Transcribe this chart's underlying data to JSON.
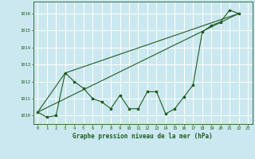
{
  "title": "Graphe pression niveau de la mer (hPa)",
  "background_color": "#cbe8f0",
  "grid_color": "#ffffff",
  "line_color": "#1e5c1e",
  "xlim": [
    -0.5,
    23.5
  ],
  "ylim": [
    1009.5,
    1016.7
  ],
  "yticks": [
    1010,
    1011,
    1012,
    1013,
    1014,
    1015,
    1016
  ],
  "xticks": [
    0,
    1,
    2,
    3,
    4,
    5,
    6,
    7,
    8,
    9,
    10,
    11,
    12,
    13,
    14,
    15,
    16,
    17,
    18,
    19,
    20,
    21,
    22,
    23
  ],
  "series1": {
    "x": [
      0,
      1,
      2,
      3,
      4,
      5,
      6,
      7,
      8,
      9,
      10,
      11,
      12,
      13,
      14,
      15,
      16,
      17,
      18,
      19,
      20,
      21,
      22
    ],
    "y": [
      1010.2,
      1009.9,
      1010.0,
      1012.5,
      1012.0,
      1011.6,
      1011.0,
      1010.8,
      1010.4,
      1011.2,
      1010.4,
      1010.4,
      1011.4,
      1011.4,
      1010.1,
      1010.4,
      1011.1,
      1011.8,
      1014.9,
      1015.3,
      1015.5,
      1016.2,
      1016.0
    ]
  },
  "series2": {
    "x": [
      0,
      22
    ],
    "y": [
      1010.2,
      1016.0
    ]
  },
  "series3": {
    "x": [
      0,
      3,
      22
    ],
    "y": [
      1010.2,
      1012.5,
      1016.0
    ]
  }
}
